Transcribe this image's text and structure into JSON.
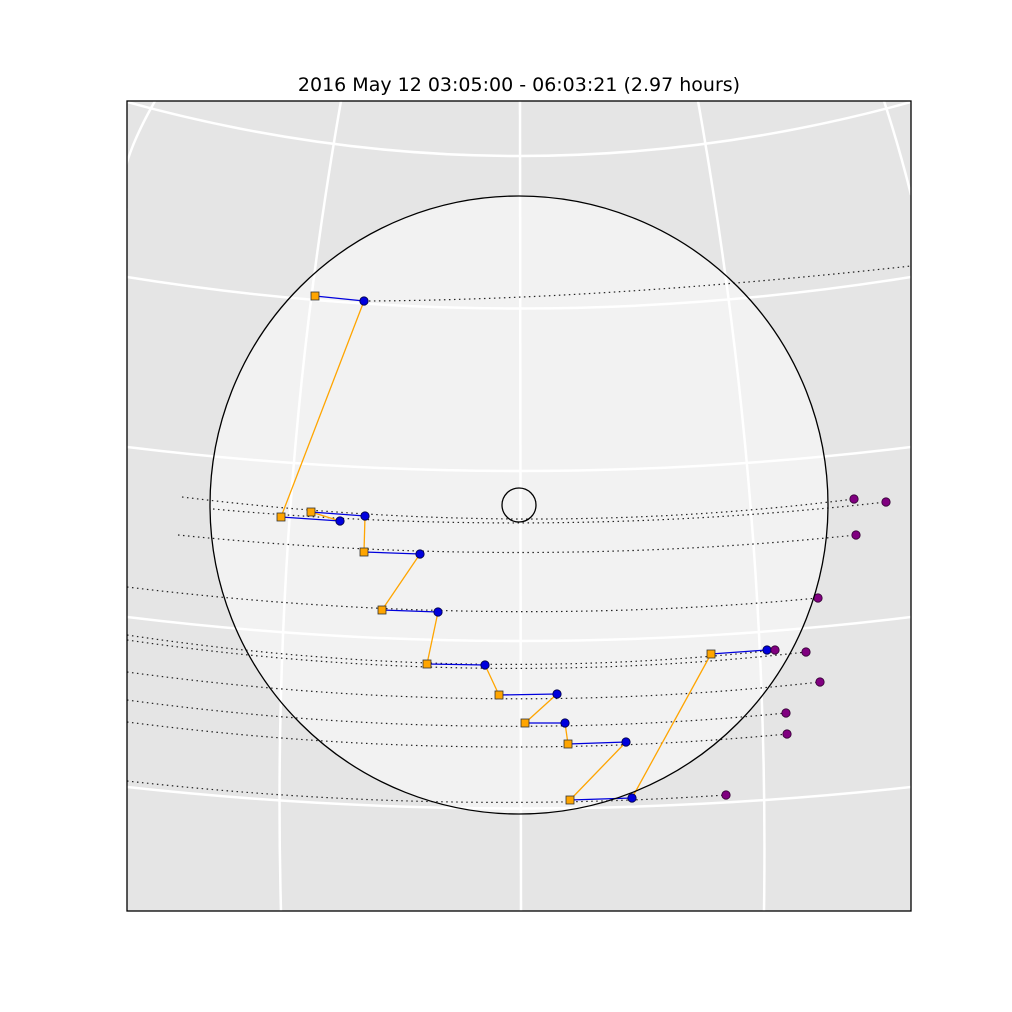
{
  "title": "2016 May 12 03:05:00 - 06:03:21 (2.97 hours)",
  "colors": {
    "background": "#e5e5e5",
    "disk_fill": "#f2f2f2",
    "grid": "#ffffff",
    "start_marker": "#ffa500",
    "end_marker": "#0000dd",
    "offdisk_marker": "#800080",
    "connector": "#ffa500",
    "track": "#0000dd"
  },
  "legend": []
}
